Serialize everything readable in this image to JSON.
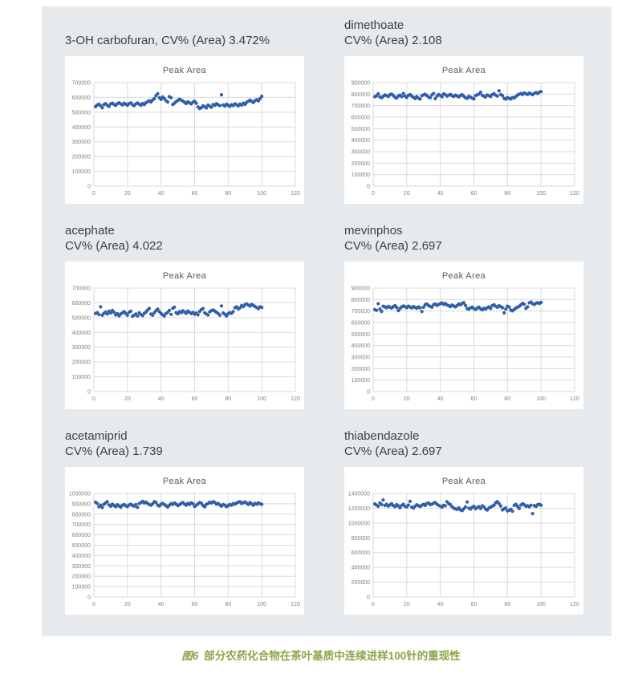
{
  "page": {
    "background": "#ffffff",
    "panel_background": "#e7eaed"
  },
  "colors": {
    "dot": "#2f5fa8",
    "grid": "#d9d9d9",
    "tick_text": "#808080",
    "chart_title": "#595959",
    "heading_text": "#3d3d3d",
    "caption": "#8aa647"
  },
  "caption": {
    "prefix": "图6",
    "text": "部分农药化合物在茶叶基质中连续进样100针的重现性"
  },
  "chart_data": [
    {
      "type": "scatter",
      "label_line1": "3-OH carbofuran, CV% (Area) 3.472%",
      "label_line2": "",
      "title": "Peak Area",
      "xlabel": "",
      "ylabel": "",
      "x_range": [
        0,
        120
      ],
      "x_step": 20,
      "y_range": [
        0,
        700000
      ],
      "y_step": 100000,
      "values": [
        538000,
        549000,
        554000,
        543000,
        530000,
        552000,
        558000,
        547000,
        539000,
        556000,
        561000,
        553000,
        546000,
        558000,
        564000,
        556000,
        549000,
        561000,
        554000,
        547000,
        558000,
        563000,
        551000,
        544000,
        556000,
        562000,
        554000,
        547000,
        559000,
        552000,
        564000,
        571000,
        578000,
        569000,
        583000,
        592000,
        612000,
        625000,
        598000,
        586000,
        603000,
        592000,
        578000,
        569000,
        605000,
        598000,
        552000,
        561000,
        572000,
        580000,
        588000,
        582000,
        575000,
        567000,
        559000,
        571000,
        563000,
        556000,
        568000,
        574000,
        561000,
        536000,
        524000,
        531000,
        543000,
        537000,
        529000,
        548000,
        541000,
        534000,
        552000,
        546000,
        558000,
        551000,
        544000,
        618000,
        549000,
        542000,
        554000,
        547000,
        539000,
        551000,
        545000,
        557000,
        550000,
        543000,
        555000,
        548000,
        561000,
        553000,
        567000,
        574000,
        581000,
        573000,
        566000,
        578000,
        585000,
        577000,
        592000,
        608000
      ]
    },
    {
      "type": "scatter",
      "label_line1": "dimethoate",
      "label_line2": "CV% (Area) 2.108",
      "title": "Peak Area",
      "xlabel": "",
      "ylabel": "",
      "x_range": [
        0,
        120
      ],
      "x_step": 20,
      "y_range": [
        0,
        900000
      ],
      "y_step": 100000,
      "values": [
        778000,
        785000,
        802000,
        776000,
        769000,
        781000,
        793000,
        787000,
        779000,
        795000,
        801000,
        788000,
        772000,
        766000,
        784000,
        791000,
        778000,
        806000,
        783000,
        771000,
        789000,
        796000,
        782000,
        774000,
        761000,
        779000,
        764000,
        758000,
        786000,
        793000,
        799000,
        787000,
        775000,
        768000,
        792000,
        806000,
        761000,
        783000,
        796000,
        789000,
        777000,
        802000,
        795000,
        783000,
        790000,
        798000,
        786000,
        779000,
        791000,
        784000,
        776000,
        788000,
        795000,
        782000,
        769000,
        763000,
        781000,
        774000,
        766000,
        759000,
        787000,
        794000,
        801000,
        816000,
        789000,
        782000,
        775000,
        793000,
        786000,
        779000,
        797000,
        804000,
        791000,
        783000,
        829000,
        796000,
        788000,
        763000,
        757000,
        770000,
        764000,
        758000,
        771000,
        766000,
        779000,
        792000,
        799000,
        806000,
        798000,
        811000,
        804000,
        797000,
        809000,
        802000,
        795000,
        807000,
        814000,
        806000,
        818000,
        822000
      ]
    },
    {
      "type": "scatter",
      "label_line1": "acephate",
      "label_line2": "CV% (Area) 4.022",
      "title": "Peak Area",
      "xlabel": "",
      "ylabel": "",
      "x_range": [
        0,
        120
      ],
      "x_step": 20,
      "y_range": [
        0,
        700000
      ],
      "y_step": 100000,
      "values": [
        528000,
        534000,
        521000,
        573000,
        516000,
        529000,
        537000,
        524000,
        543000,
        531000,
        549000,
        536000,
        518000,
        527000,
        512000,
        524000,
        533000,
        541000,
        528000,
        516000,
        536000,
        543000,
        509000,
        517000,
        525000,
        511000,
        533000,
        521000,
        514000,
        529000,
        537000,
        551000,
        562000,
        524000,
        516000,
        533000,
        547000,
        558000,
        541000,
        527000,
        519000,
        511000,
        528000,
        536000,
        549000,
        522000,
        563000,
        571000,
        534000,
        526000,
        541000,
        533000,
        546000,
        538000,
        529000,
        544000,
        536000,
        527000,
        535000,
        523000,
        531000,
        519000,
        542000,
        554000,
        561000,
        533000,
        525000,
        517000,
        539000,
        547000,
        552000,
        544000,
        536000,
        528000,
        516000,
        579000,
        531000,
        523000,
        511000,
        526000,
        534000,
        529000,
        541000,
        567000,
        573000,
        558000,
        566000,
        581000,
        574000,
        587000,
        592000,
        585000,
        578000,
        589000,
        583000,
        575000,
        568000,
        561000,
        573000,
        569000
      ]
    },
    {
      "type": "scatter",
      "label_line1": "mevinphos",
      "label_line2": "CV% (Area) 2.697",
      "title": "Peak Area",
      "xlabel": "",
      "ylabel": "",
      "x_range": [
        0,
        120
      ],
      "x_step": 20,
      "y_range": [
        0,
        900000
      ],
      "y_step": 100000,
      "values": [
        712000,
        706000,
        764000,
        718000,
        697000,
        742000,
        736000,
        728000,
        741000,
        733000,
        726000,
        739000,
        747000,
        731000,
        704000,
        723000,
        736000,
        744000,
        738000,
        729000,
        742000,
        735000,
        727000,
        739000,
        731000,
        724000,
        736000,
        728000,
        696000,
        733000,
        756000,
        762000,
        748000,
        741000,
        733000,
        755000,
        762000,
        749000,
        757000,
        764000,
        771000,
        758000,
        766000,
        753000,
        747000,
        739000,
        752000,
        744000,
        736000,
        748000,
        761000,
        754000,
        767000,
        773000,
        749000,
        722000,
        716000,
        728000,
        734000,
        721000,
        714000,
        726000,
        733000,
        719000,
        711000,
        724000,
        717000,
        729000,
        736000,
        723000,
        748000,
        754000,
        741000,
        733000,
        746000,
        738000,
        729000,
        684000,
        717000,
        742000,
        735000,
        709000,
        702000,
        714000,
        726000,
        733000,
        741000,
        754000,
        767000,
        759000,
        723000,
        736000,
        771000,
        778000,
        764000,
        757000,
        769000,
        773000,
        766000,
        775000
      ]
    },
    {
      "type": "scatter",
      "label_line1": "acetamiprid",
      "label_line2": "CV% (Area) 1.739",
      "title": "Peak Area",
      "xlabel": "",
      "ylabel": "",
      "x_range": [
        0,
        120
      ],
      "x_step": 20,
      "y_range": [
        0,
        1000000
      ],
      "y_step": 100000,
      "values": [
        916000,
        903000,
        871000,
        887000,
        864000,
        895000,
        908000,
        921000,
        889000,
        876000,
        898000,
        884000,
        872000,
        891000,
        879000,
        868000,
        886000,
        894000,
        881000,
        873000,
        889000,
        896000,
        884000,
        877000,
        892000,
        865000,
        903000,
        911000,
        924000,
        908000,
        917000,
        905000,
        893000,
        886000,
        899000,
        921000,
        913000,
        887000,
        879000,
        896000,
        904000,
        892000,
        881000,
        869000,
        887000,
        902000,
        894000,
        908000,
        896000,
        883000,
        891000,
        904000,
        912000,
        898000,
        886000,
        905000,
        893000,
        909000,
        901000,
        874000,
        887000,
        899000,
        912000,
        906000,
        883000,
        871000,
        894000,
        902000,
        916000,
        908000,
        921000,
        913000,
        896000,
        904000,
        889000,
        877000,
        893000,
        886000,
        872000,
        881000,
        894000,
        887000,
        902000,
        896000,
        908000,
        915000,
        921000,
        903000,
        911000,
        918000,
        906000,
        894000,
        912000,
        899000,
        887000,
        904000,
        896000,
        909000,
        901000,
        895000
      ]
    },
    {
      "type": "scatter",
      "label_line1": "thiabendazole",
      "label_line2": "CV% (Area) 2.697",
      "title": "Peak Area",
      "xlabel": "",
      "ylabel": "",
      "x_range": [
        0,
        120
      ],
      "x_step": 20,
      "y_range": [
        0,
        1400000
      ],
      "y_step": 200000,
      "values": [
        1258000,
        1243000,
        1226000,
        1271000,
        1249000,
        1312000,
        1237000,
        1253000,
        1228000,
        1244000,
        1262000,
        1236000,
        1221000,
        1248000,
        1232000,
        1207000,
        1239000,
        1254000,
        1226000,
        1218000,
        1243000,
        1293000,
        1216000,
        1204000,
        1229000,
        1247000,
        1235000,
        1222000,
        1241000,
        1253000,
        1237000,
        1264000,
        1271000,
        1248000,
        1256000,
        1269000,
        1277000,
        1254000,
        1239000,
        1228000,
        1216000,
        1241000,
        1233000,
        1287000,
        1262000,
        1249000,
        1221000,
        1203000,
        1192000,
        1184000,
        1206000,
        1177000,
        1168000,
        1192000,
        1219000,
        1284000,
        1201000,
        1188000,
        1213000,
        1226000,
        1194000,
        1208000,
        1221000,
        1196000,
        1234000,
        1217000,
        1188000,
        1176000,
        1203000,
        1216000,
        1229000,
        1242000,
        1274000,
        1289000,
        1263000,
        1231000,
        1178000,
        1192000,
        1204000,
        1163000,
        1171000,
        1186000,
        1159000,
        1238000,
        1252000,
        1226000,
        1198000,
        1243000,
        1262000,
        1247000,
        1226000,
        1234000,
        1219000,
        1241000,
        1128000,
        1236000,
        1224000,
        1248000,
        1253000,
        1242000
      ]
    }
  ]
}
